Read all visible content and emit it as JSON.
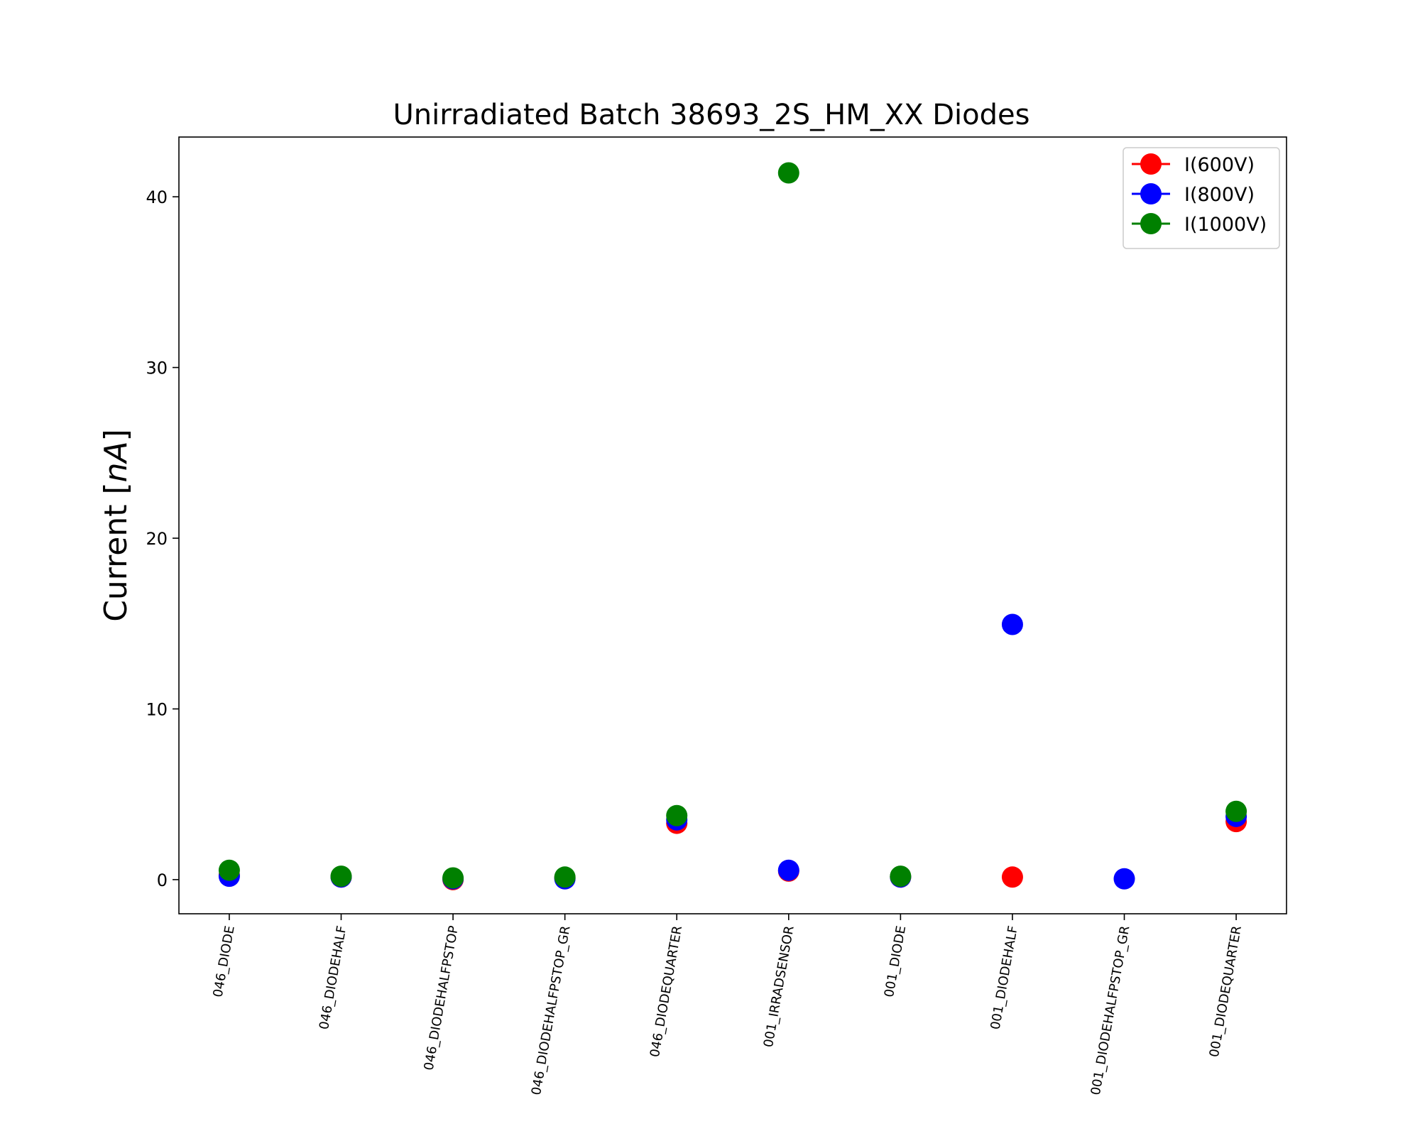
{
  "chart_data": {
    "type": "scatter",
    "title": "Unirradiated Batch 38693_2S_HM_XX Diodes",
    "ylabel_prefix": "Current [",
    "ylabel_unit": "nA",
    "ylabel_suffix": "]",
    "xlabel": "",
    "categories": [
      "046_DIODE",
      "046_DIODEHALF",
      "046_DIODEHALFPSTOP",
      "046_DIODEHALFPSTOP_GR",
      "046_DIODEQUARTER",
      "001_IRRADSENSOR",
      "001_DIODE",
      "001_DIODEHALF",
      "001_DIODEHALFPSTOP_GR",
      "001_DIODEQUARTER"
    ],
    "ylim": [
      -2,
      43.5
    ],
    "yticks": [
      0,
      10,
      20,
      30,
      40
    ],
    "grid": false,
    "legend_position": "top-right",
    "series": [
      {
        "name": "I(600V)",
        "color": "#ff0000",
        "values": [
          0.25,
          0.15,
          0.0,
          0.1,
          3.3,
          0.5,
          0.15,
          0.15,
          null,
          3.4
        ]
      },
      {
        "name": "I(800V)",
        "color": "#0000ff",
        "values": [
          0.2,
          0.15,
          0.05,
          0.05,
          3.5,
          0.55,
          0.15,
          14.95,
          0.05,
          3.7
        ]
      },
      {
        "name": "I(1000V)",
        "color": "#008000",
        "values": [
          0.55,
          0.2,
          0.1,
          0.15,
          3.75,
          41.4,
          0.2,
          null,
          null,
          4.0
        ]
      }
    ]
  }
}
